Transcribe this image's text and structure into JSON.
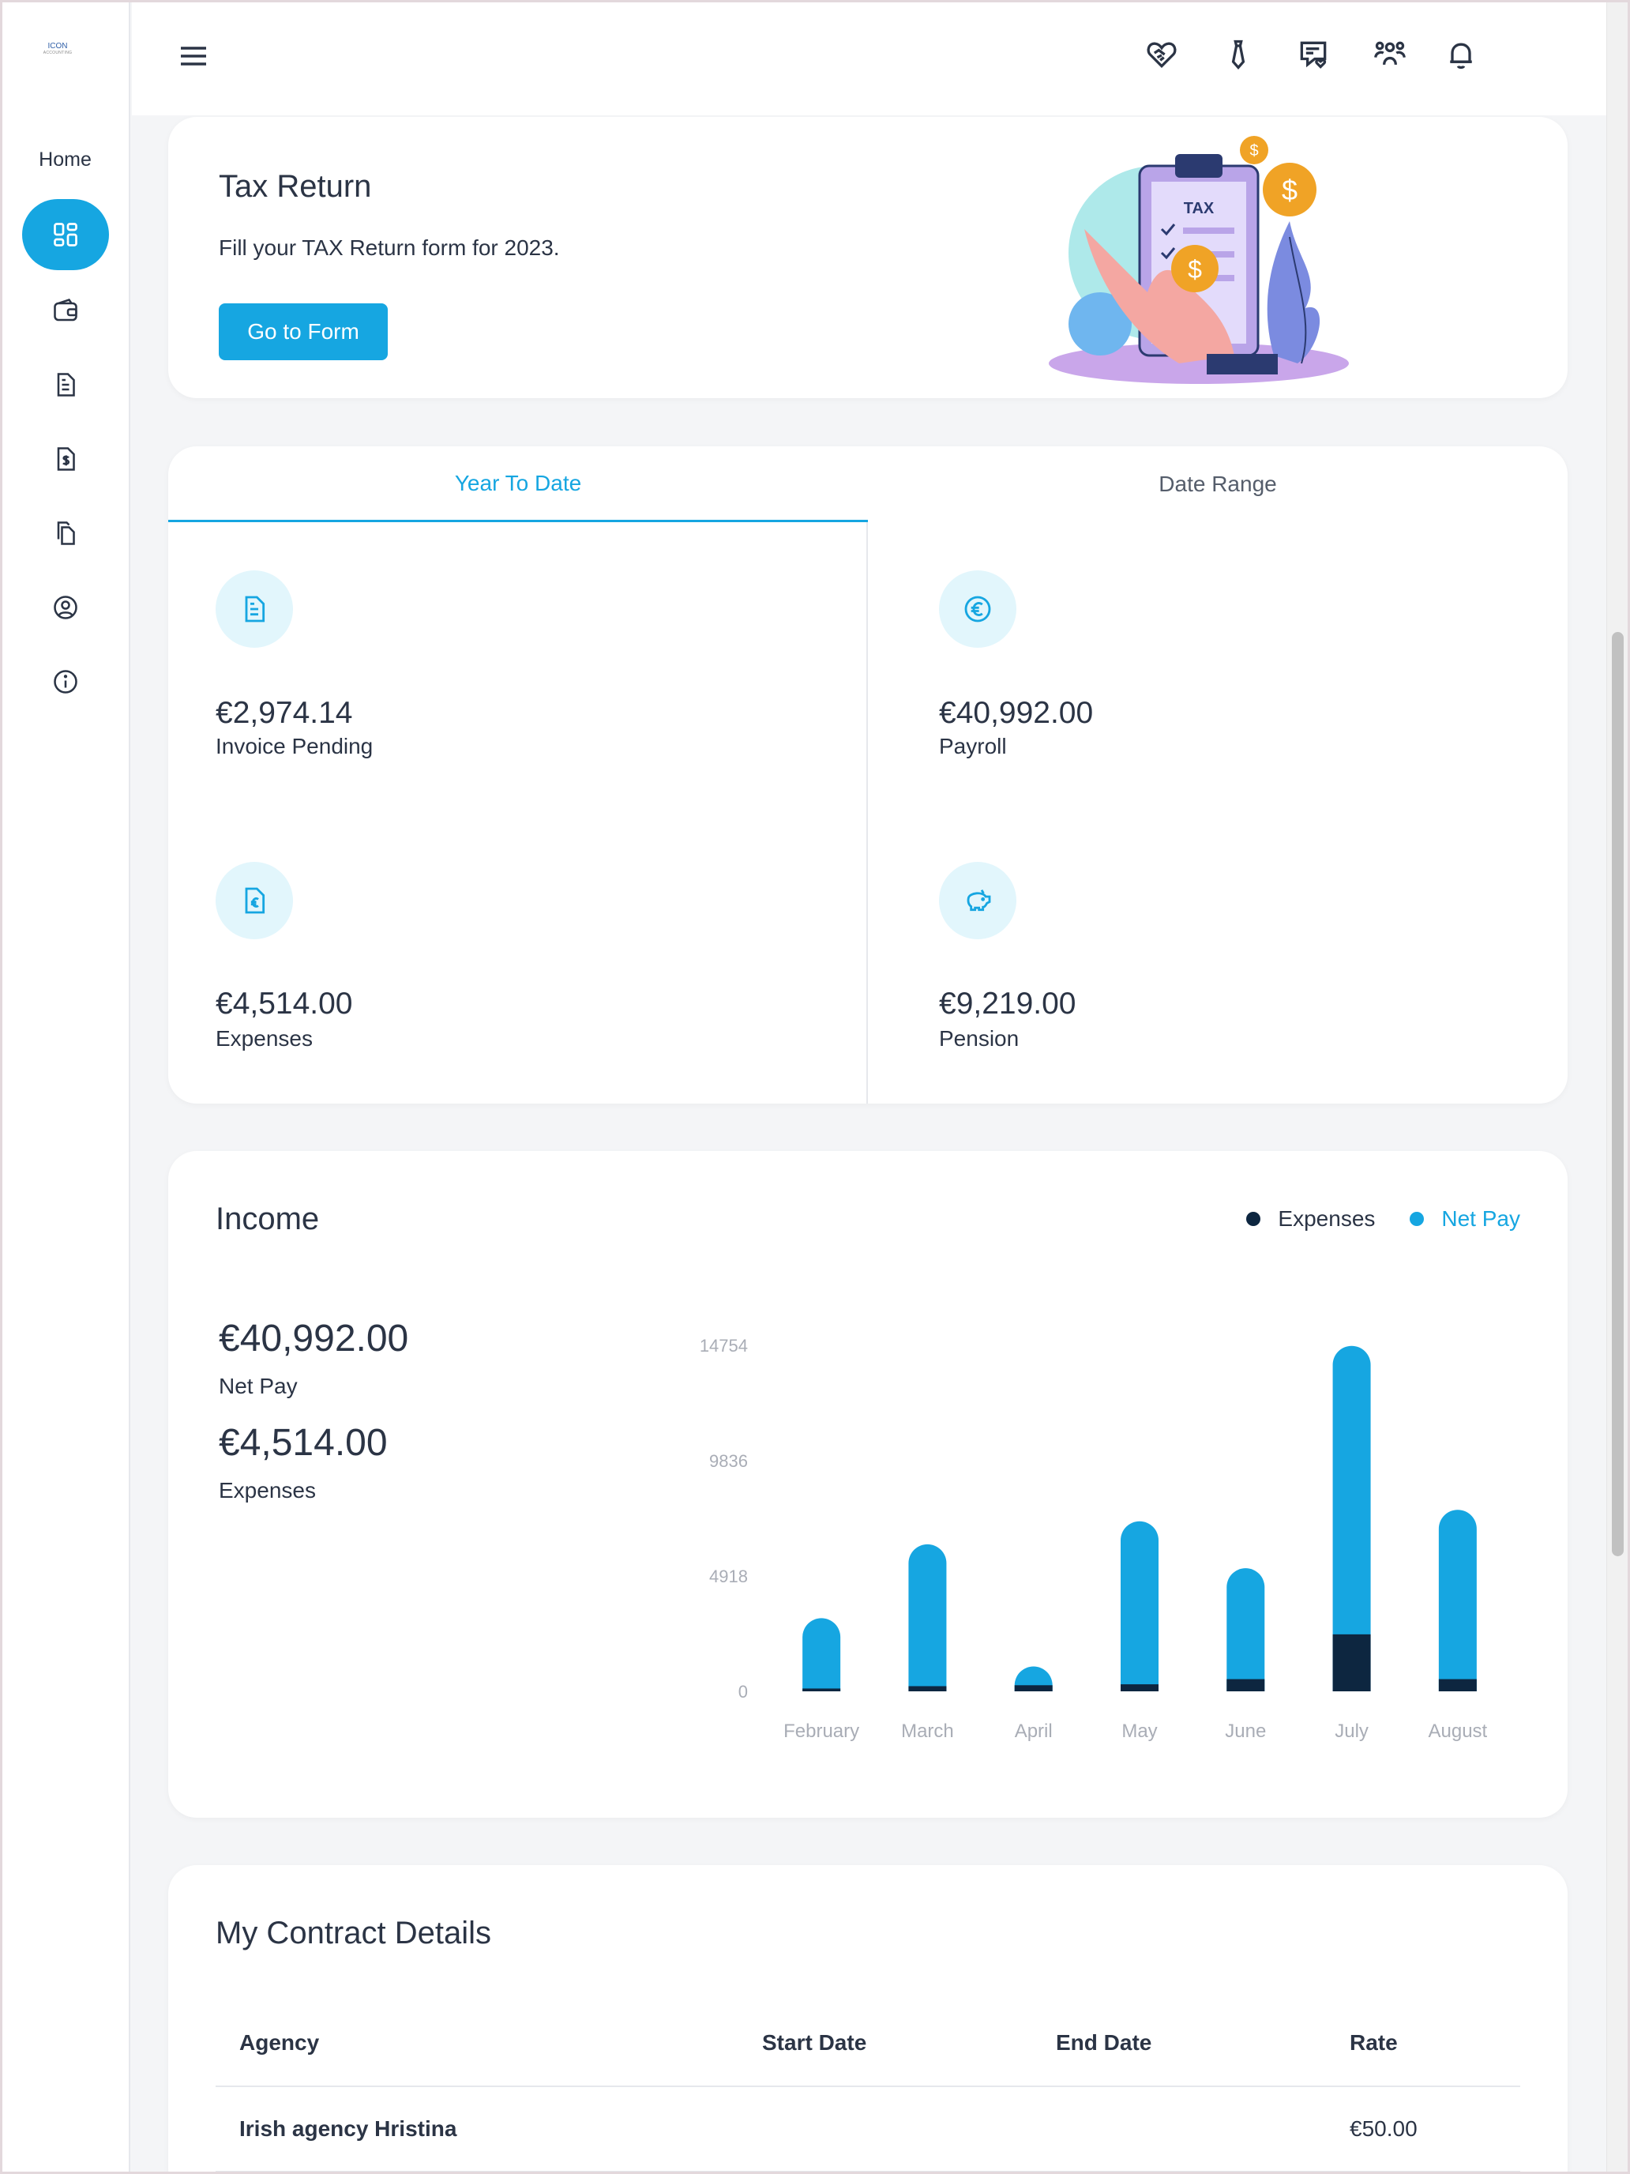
{
  "sidebar": {
    "logo_main": "ICON",
    "logo_sub": "ACCOUNTING",
    "home_label": "Home",
    "items": [
      {
        "name": "dashboard-icon",
        "active": true
      },
      {
        "name": "wallet-icon",
        "active": false
      },
      {
        "name": "document-icon",
        "active": false
      },
      {
        "name": "invoice-dollar-icon",
        "active": false
      },
      {
        "name": "copy-icon",
        "active": false
      },
      {
        "name": "user-circle-icon",
        "active": false
      },
      {
        "name": "info-icon",
        "active": false
      }
    ]
  },
  "topbar": {
    "icons": [
      "handshake-heart-icon",
      "tie-icon",
      "message-heart-icon",
      "people-icon",
      "bell-icon"
    ],
    "avatar": "avatar"
  },
  "tax": {
    "title": "Tax Return",
    "subtitle": "Fill your TAX Return form for 2023.",
    "button": "Go to Form",
    "illustration_text": "TAX"
  },
  "summary": {
    "tabs": [
      "Year To Date",
      "Date Range"
    ],
    "active_tab": "Year To Date",
    "stats": [
      {
        "value": "€2,974.14",
        "label": "Invoice Pending",
        "icon": "document-icon"
      },
      {
        "value": "€40,992.00",
        "label": "Payroll",
        "icon": "euro-icon"
      },
      {
        "value": "€4,514.00",
        "label": "Expenses",
        "icon": "euro-file-icon"
      },
      {
        "value": "€9,219.00",
        "label": "Pension",
        "icon": "piggy-bank-icon"
      }
    ]
  },
  "income": {
    "title": "Income",
    "legend": [
      "Expenses",
      "Net Pay"
    ],
    "net_pay_value": "€40,992.00",
    "net_pay_label": "Net Pay",
    "expenses_value": "€4,514.00",
    "expenses_label": "Expenses"
  },
  "colors": {
    "accent": "#16a6e1",
    "expenses": "#0d2640",
    "icon_bg": "#e2f6fc"
  },
  "chart_data": {
    "type": "bar",
    "stacked": true,
    "categories": [
      "February",
      "March",
      "April",
      "May",
      "June",
      "July",
      "August"
    ],
    "series": [
      {
        "name": "Expenses",
        "values": [
          120,
          220,
          260,
          300,
          520,
          2430,
          520
        ]
      },
      {
        "name": "Net Pay",
        "values": [
          3000,
          6050,
          800,
          6950,
          4730,
          12300,
          7220
        ]
      }
    ],
    "yticks": [
      0,
      4918,
      9836,
      14754
    ],
    "ylim": [
      0,
      14754
    ],
    "grid": false,
    "legend_position": "top-right"
  },
  "contract": {
    "title": "My Contract Details",
    "columns": [
      "Agency",
      "Start Date",
      "End Date",
      "Rate"
    ],
    "rows": [
      [
        "Irish agency Hristina",
        "",
        "",
        "€50.00"
      ]
    ]
  }
}
